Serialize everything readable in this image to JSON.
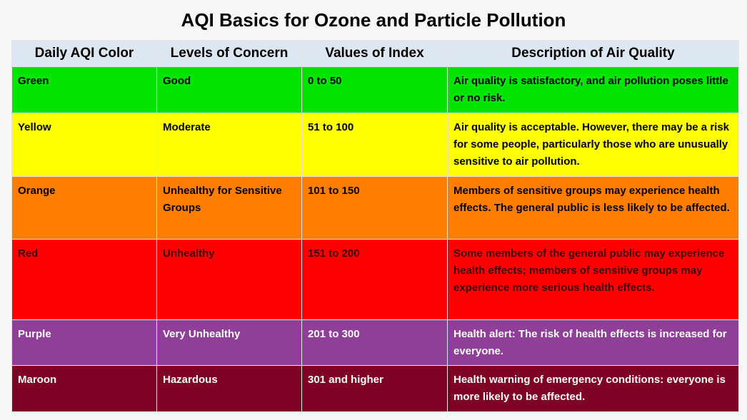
{
  "title": "AQI Basics for Ozone and Particle Pollution",
  "table": {
    "header": [
      "Daily AQI Color",
      "Levels of Concern",
      "Values of Index",
      "Description of Air Quality"
    ],
    "rows": [
      [
        "Green",
        "Good",
        "0 to 50",
        "Air quality is satisfactory, and air pollution poses little or no risk."
      ],
      [
        "Yellow",
        "Moderate",
        "51 to 100",
        "Air quality is acceptable. However, there may be a risk for some people, particularly those who are unusually sensitive to air pollution."
      ],
      [
        "Orange",
        "Unhealthy for Sensitive Groups",
        "101 to 150",
        "Members of sensitive groups may experience health effects. The general public is less likely to be affected."
      ],
      [
        "Red",
        "Unhealthy",
        "151 to 200",
        "Some members of the general public may experience health effects; members of sensitive groups may experience more serious health effects."
      ],
      [
        "Purple",
        "Very Unhealthy",
        "201 to 300",
        "Health alert: The risk of health effects is increased for everyone."
      ],
      [
        "Maroon",
        "Hazardous",
        "301 and higher",
        "Health warning of emergency conditions: everyone is more likely to be affected."
      ]
    ]
  }
}
